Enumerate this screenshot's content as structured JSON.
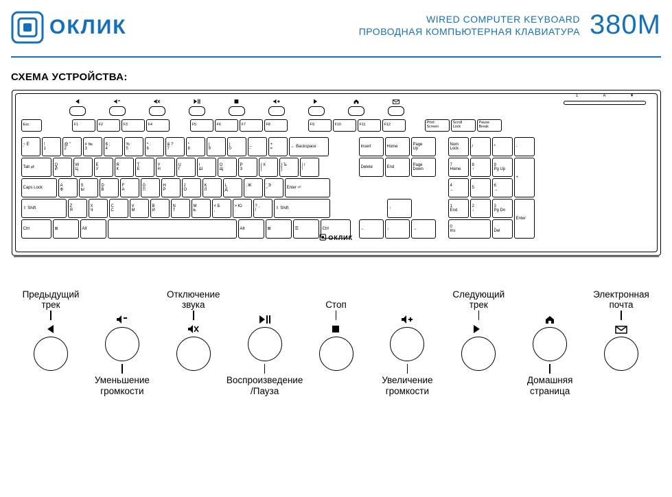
{
  "brand": {
    "text": "ОКЛИК",
    "accent_color": "#1670b7"
  },
  "header": {
    "subtitle_en": "WIRED COMPUTER KEYBOARD",
    "subtitle_ru": "ПРОВОДНАЯ КОМПЬЮТЕРНАЯ КЛАВИАТУРА",
    "model": "380M"
  },
  "section_title": "СХЕМА УСТРОЙСТВА:",
  "media_icons": [
    "prev",
    "vol-down",
    "mute",
    "play-pause",
    "stop",
    "vol-up",
    "next",
    "home",
    "mail"
  ],
  "led_labels": [
    "1",
    "A",
    "▼"
  ],
  "keys": {
    "esc": "Esc",
    "fn": [
      "F1",
      "F2",
      "F3",
      "F4",
      "F5",
      "F6",
      "F7",
      "F8",
      "F9",
      "F10",
      "F11",
      "F12"
    ],
    "sys": [
      [
        "Print",
        "Screen"
      ],
      [
        "Scroll",
        "Lock"
      ],
      [
        "Pause",
        "Break"
      ]
    ],
    "row1": [
      [
        "~ Ё",
        "`"
      ],
      [
        "!",
        "1"
      ],
      [
        "@ \"",
        "2"
      ],
      [
        "# №",
        "3"
      ],
      [
        "$ ;",
        "4"
      ],
      [
        "%",
        "5"
      ],
      [
        "^ :",
        "6"
      ],
      [
        "& ?",
        "7"
      ],
      [
        "* ",
        "8"
      ],
      [
        "( ",
        "9"
      ],
      [
        ") ",
        "0"
      ],
      [
        "_",
        "-"
      ],
      [
        "+",
        "="
      ]
    ],
    "backspace": "← Backspace",
    "tab": "Tab ⇄",
    "row2": [
      [
        "Q",
        "Й"
      ],
      [
        "W",
        "Ц"
      ],
      [
        "E",
        "У"
      ],
      [
        "R",
        "К"
      ],
      [
        "T",
        "Е"
      ],
      [
        "Y",
        "Н"
      ],
      [
        "U",
        "Г"
      ],
      [
        "I",
        "Ш"
      ],
      [
        "O",
        "Щ"
      ],
      [
        "P",
        "З"
      ],
      [
        "{ Х",
        "["
      ],
      [
        "} Ъ",
        "]"
      ],
      [
        "| /",
        "\\"
      ]
    ],
    "caps": "Caps Lock",
    "row3": [
      [
        "A",
        "Ф"
      ],
      [
        "S",
        "Ы"
      ],
      [
        "D",
        "В"
      ],
      [
        "F",
        "А"
      ],
      [
        "G",
        "П"
      ],
      [
        "H",
        "Р"
      ],
      [
        "J",
        "О"
      ],
      [
        "K",
        "Л"
      ],
      [
        "L",
        "Д"
      ],
      [
        "; Ж",
        ":"
      ],
      [
        "' Э",
        "\""
      ]
    ],
    "enter": "Enter ⏎",
    "lshift": "⇧ Shift",
    "row4": [
      [
        "Z",
        "Я"
      ],
      [
        "X",
        "Ч"
      ],
      [
        "C",
        "С"
      ],
      [
        "V",
        "М"
      ],
      [
        "B",
        "И"
      ],
      [
        "N",
        "Т"
      ],
      [
        "M",
        "Ь"
      ],
      [
        "< Б",
        ","
      ],
      [
        "> Ю",
        "."
      ],
      [
        "? ,",
        "/"
      ]
    ],
    "rshift": "⇧ Shift",
    "bottom": [
      "Ctrl",
      "⊞",
      "Alt",
      "",
      "Alt",
      "⊞",
      "☰",
      "Ctrl"
    ],
    "nav1": [
      "Insert",
      "Home",
      "Page Up"
    ],
    "nav2": [
      "Delete",
      "End",
      "Page Down"
    ],
    "arrows": [
      "↑",
      "←",
      "↓",
      "→"
    ],
    "num_top": [
      "Num Lock",
      "/",
      "*",
      "-"
    ],
    "num": [
      [
        "7",
        "Home"
      ],
      [
        "8",
        "↑"
      ],
      [
        "9",
        "Pg Up"
      ],
      [
        "4",
        "←"
      ],
      [
        "5",
        ""
      ],
      [
        "6",
        "→"
      ],
      [
        "1",
        "End"
      ],
      [
        "2",
        "↓"
      ],
      [
        "3",
        "Pg Dn"
      ]
    ],
    "num_plus": "+",
    "num_enter": "Enter",
    "num_0": [
      "0",
      "Ins"
    ],
    "num_dot": [
      ".",
      "Del"
    ]
  },
  "space_brand": "ОКЛИК",
  "legend": [
    {
      "pos": "top",
      "icon": "prev",
      "l1": "Предыдущий",
      "l2": "трек"
    },
    {
      "pos": "bot",
      "icon": "vol-down",
      "l1": "Уменьшение",
      "l2": "громкости"
    },
    {
      "pos": "top",
      "icon": "mute",
      "l1": "Отключение",
      "l2": "звука"
    },
    {
      "pos": "bot",
      "icon": "play-pause",
      "l1": "Воспроизведение",
      "l2": "/Пауза"
    },
    {
      "pos": "top",
      "icon": "stop",
      "l1": "Стоп",
      "l2": ""
    },
    {
      "pos": "bot",
      "icon": "vol-up",
      "l1": "Увеличение",
      "l2": "громкости"
    },
    {
      "pos": "top",
      "icon": "next",
      "l1": "Следующий",
      "l2": "трек"
    },
    {
      "pos": "bot",
      "icon": "home",
      "l1": "Домашняя",
      "l2": "страница"
    },
    {
      "pos": "top",
      "icon": "mail",
      "l1": "Электронная",
      "l2": "почта"
    }
  ],
  "colors": {
    "stroke": "#000000",
    "background": "#ffffff",
    "accent": "#1670b7"
  },
  "figure": {
    "type": "diagram",
    "aspect": "979x725"
  }
}
